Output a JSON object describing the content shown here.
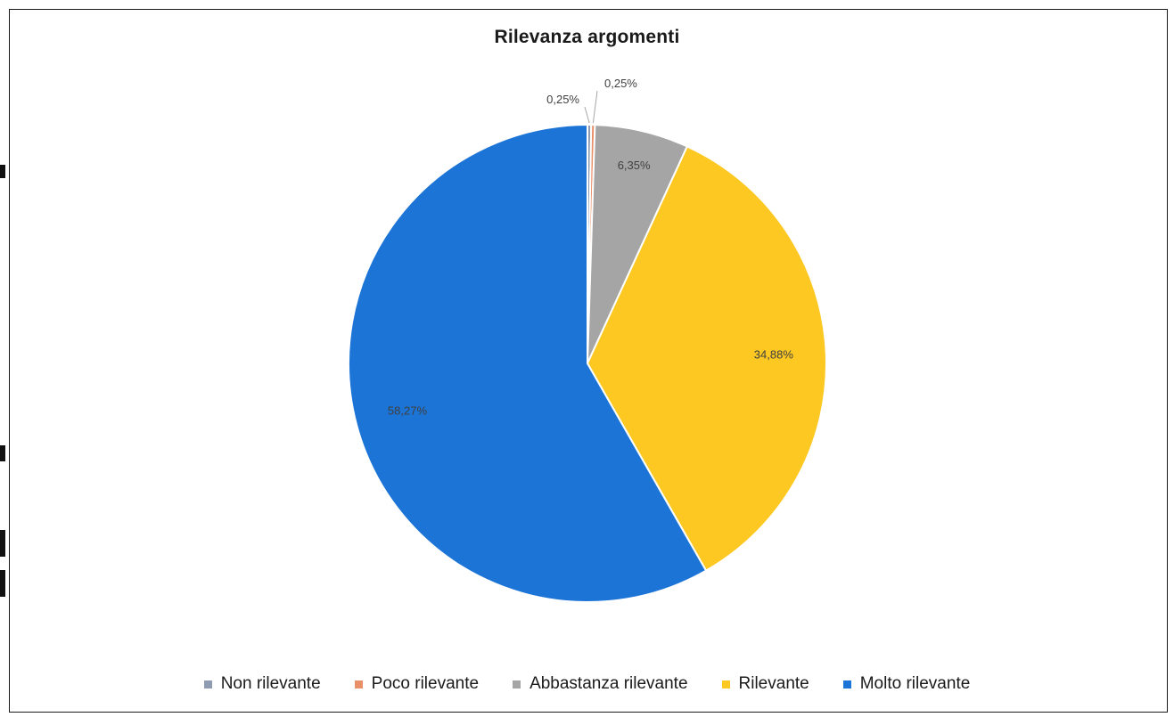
{
  "chart_data": {
    "type": "pie",
    "title": "Rilevanza argomenti",
    "categories": [
      "Non rilevante",
      "Poco rilevante",
      "Abbastanza rilevante",
      "Rilevante",
      "Molto rilevante"
    ],
    "values": [
      0.25,
      0.25,
      6.35,
      34.88,
      58.27
    ],
    "data_labels": [
      "0,25%",
      "0,25%",
      "6,35%",
      "34,88%",
      "58,27%"
    ],
    "colors": [
      "#8e9bb0",
      "#e9906a",
      "#a5a5a5",
      "#fcc821",
      "#1b74d6"
    ],
    "legend_position": "bottom"
  }
}
